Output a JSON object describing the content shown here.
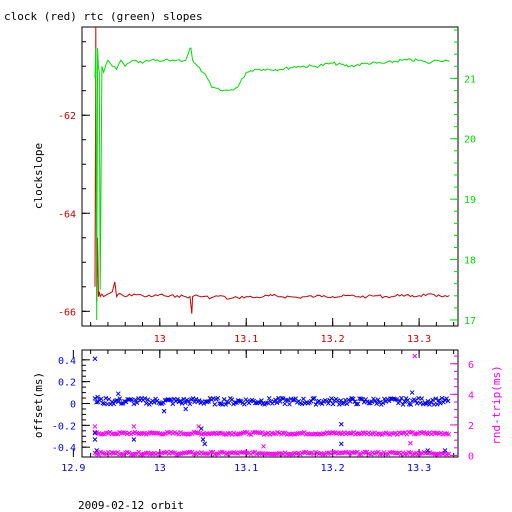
{
  "page": {
    "title": "clock (red) rtc (green) slopes",
    "footer": "2009-02-12 orbit"
  },
  "colors": {
    "clock": "#cc0000",
    "rtc": "#00dd00",
    "offset": "#0000ff",
    "rndtrip": "#ff00ff",
    "frame": "#000000"
  },
  "chart_data": [
    {
      "type": "line",
      "title": "clock (red) rtc (green) slopes",
      "ylabel": "clockslope",
      "xlim": [
        12.91,
        13.345
      ],
      "ylim": [
        -66.3,
        -60.2
      ],
      "y2lim": [
        16.9,
        21.85
      ],
      "x_ticks": [
        "13",
        "13.1",
        "13.2",
        "13.3"
      ],
      "y_ticks": [
        "-62",
        "-64",
        "-66"
      ],
      "y2_ticks": [
        "21",
        "20",
        "19",
        "18",
        "17"
      ],
      "grid": false,
      "series": [
        {
          "name": "clock",
          "axis": "left",
          "x": [
            12.925,
            12.926,
            12.927,
            12.928,
            12.929,
            12.93,
            12.931,
            12.933,
            12.935,
            12.94,
            12.945,
            12.948,
            12.95,
            12.952,
            12.96,
            12.97,
            12.98,
            12.99,
            13.0,
            13.01,
            13.02,
            13.03,
            13.035,
            13.037,
            13.038,
            13.04,
            13.05,
            13.06,
            13.07,
            13.08,
            13.09,
            13.1,
            13.11,
            13.12,
            13.13,
            13.14,
            13.15,
            13.16,
            13.17,
            13.18,
            13.19,
            13.2,
            13.21,
            13.22,
            13.23,
            13.24,
            13.25,
            13.26,
            13.27,
            13.28,
            13.29,
            13.3,
            13.31,
            13.32,
            13.33,
            13.335
          ],
          "y": [
            -65.5,
            -60.2,
            -65.8,
            -64.5,
            -65.7,
            -65.6,
            -65.7,
            -65.65,
            -65.7,
            -65.65,
            -65.6,
            -65.4,
            -65.7,
            -65.65,
            -65.7,
            -65.65,
            -65.68,
            -65.7,
            -65.66,
            -65.7,
            -65.68,
            -65.7,
            -65.7,
            -66.05,
            -65.7,
            -65.68,
            -65.7,
            -65.72,
            -65.68,
            -65.75,
            -65.72,
            -65.7,
            -65.72,
            -65.7,
            -65.68,
            -65.7,
            -65.7,
            -65.72,
            -65.7,
            -65.7,
            -65.68,
            -65.7,
            -65.7,
            -65.68,
            -65.7,
            -65.7,
            -65.68,
            -65.7,
            -65.7,
            -65.66,
            -65.7,
            -65.68,
            -65.65,
            -65.7,
            -65.68,
            -65.68
          ]
        },
        {
          "name": "rtc",
          "axis": "right",
          "x": [
            12.925,
            12.926,
            12.927,
            12.928,
            12.929,
            12.93,
            12.931,
            12.933,
            12.935,
            12.94,
            12.945,
            12.95,
            12.955,
            12.96,
            12.97,
            12.98,
            12.99,
            13.0,
            13.01,
            13.02,
            13.03,
            13.035,
            13.036,
            13.038,
            13.04,
            13.05,
            13.055,
            13.06,
            13.07,
            13.08,
            13.09,
            13.1,
            13.11,
            13.12,
            13.14,
            13.16,
            13.18,
            13.2,
            13.22,
            13.24,
            13.26,
            13.28,
            13.3,
            13.31,
            13.32,
            13.33,
            13.335
          ],
          "y": [
            21.0,
            21.5,
            17.0,
            21.5,
            21.2,
            21.1,
            17.5,
            21.2,
            21.1,
            21.3,
            21.2,
            21.15,
            21.3,
            21.2,
            21.3,
            21.25,
            21.3,
            21.28,
            21.3,
            21.3,
            21.3,
            21.5,
            21.5,
            21.3,
            21.25,
            21.1,
            21.0,
            20.85,
            20.8,
            20.8,
            20.85,
            21.1,
            21.15,
            21.15,
            21.15,
            21.2,
            21.2,
            21.25,
            21.2,
            21.25,
            21.25,
            21.3,
            21.3,
            21.25,
            21.3,
            21.3,
            21.28
          ]
        }
      ]
    },
    {
      "type": "scatter",
      "ylabel": "offset(ms)",
      "y2label": "rnd-trip(ms)",
      "xlim": [
        12.91,
        13.345
      ],
      "ylim": [
        -0.49,
        0.49
      ],
      "y2lim": [
        -0.1,
        6.9
      ],
      "x_ticks": [
        "12.9",
        "13",
        "13.1",
        "13.2",
        "13.3"
      ],
      "y_ticks": [
        "0.4",
        "0.2",
        "0",
        "-0.2",
        "-0.4"
      ],
      "y2_ticks": [
        "6",
        "4",
        "2",
        "0"
      ],
      "grid": false,
      "series": [
        {
          "name": "offset",
          "axis": "left",
          "band": {
            "from": 12.925,
            "to": 13.335,
            "center": 0.02,
            "spread": 0.03
          },
          "outliers": [
            [
              12.925,
              0.41
            ],
            [
              12.925,
              -0.27
            ],
            [
              12.925,
              -0.33
            ],
            [
              12.927,
              -0.43
            ],
            [
              12.928,
              0.06
            ],
            [
              12.952,
              0.09
            ],
            [
              12.97,
              -0.33
            ],
            [
              13.005,
              -0.07
            ],
            [
              13.03,
              -0.05
            ],
            [
              13.048,
              -0.23
            ],
            [
              13.05,
              -0.33
            ],
            [
              13.052,
              -0.37
            ],
            [
              13.21,
              -0.19
            ],
            [
              13.21,
              -0.37
            ],
            [
              13.292,
              0.1
            ],
            [
              13.31,
              -0.43
            ],
            [
              13.33,
              -0.43
            ]
          ]
        },
        {
          "name": "rnd-trip",
          "axis": "right",
          "bands": [
            {
              "from": 12.925,
              "to": 13.335,
              "center": 1.45,
              "spread": 0.08
            },
            {
              "from": 12.925,
              "to": 13.335,
              "center": 0.15,
              "spread": 0.08
            }
          ],
          "outliers": [
            [
              12.925,
              1.9
            ],
            [
              12.97,
              1.9
            ],
            [
              13.045,
              1.9
            ],
            [
              13.295,
              6.5
            ],
            [
              13.29,
              0.8
            ],
            [
              13.12,
              0.6
            ]
          ]
        }
      ]
    }
  ]
}
